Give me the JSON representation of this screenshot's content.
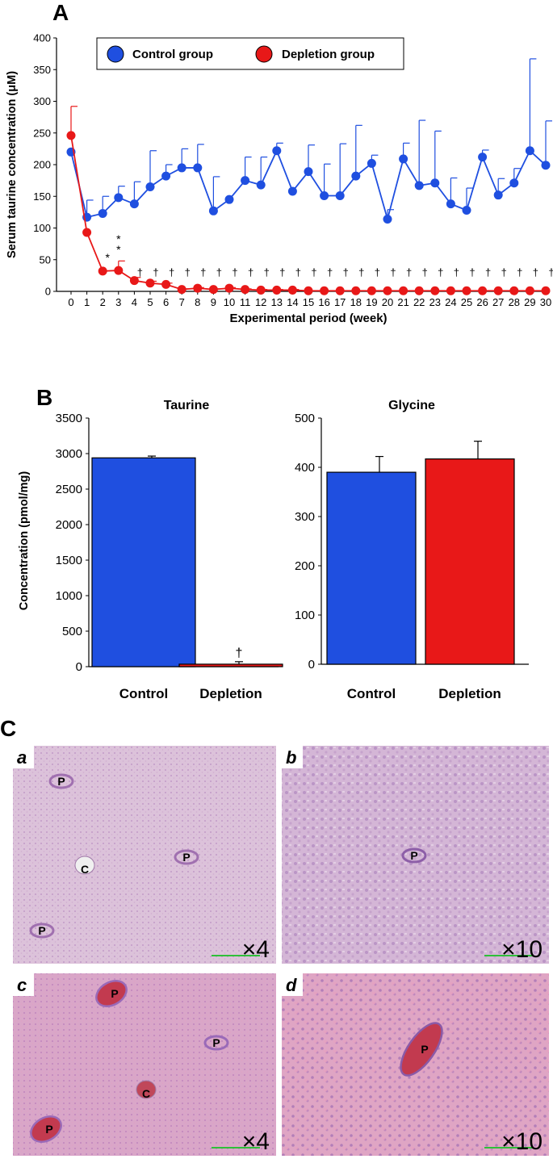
{
  "panel_letters": {
    "a": "A",
    "b": "B",
    "c": "C"
  },
  "chart_data": [
    {
      "type": "line",
      "panel": "A",
      "ylabel": "Serum taurine concentration (μM)",
      "xlabel": "Experimental period (week)",
      "ylim": [
        0,
        400
      ],
      "yticks": [
        0,
        50,
        100,
        150,
        200,
        250,
        300,
        350,
        400
      ],
      "x": [
        0,
        1,
        2,
        3,
        4,
        5,
        6,
        7,
        8,
        9,
        10,
        11,
        12,
        13,
        14,
        15,
        16,
        17,
        18,
        19,
        20,
        21,
        22,
        23,
        24,
        25,
        26,
        27,
        28,
        29,
        30
      ],
      "legend_position": "top",
      "series": [
        {
          "name": "Control group",
          "color": "#1f4fe0",
          "values": [
            220,
            117,
            123,
            148,
            138,
            165,
            182,
            195,
            195,
            127,
            145,
            175,
            168,
            222,
            158,
            189,
            151,
            151,
            182,
            202,
            114,
            209,
            167,
            171,
            138,
            128,
            212,
            152,
            171,
            222,
            199
          ],
          "error_plus": [
            0,
            27,
            27,
            18,
            35,
            57,
            18,
            30,
            37,
            54,
            0,
            37,
            44,
            12,
            0,
            42,
            50,
            82,
            80,
            13,
            15,
            25,
            103,
            82,
            41,
            35,
            11,
            26,
            23,
            145,
            70
          ]
        },
        {
          "name": "Depletion group",
          "color": "#e81818",
          "values": [
            246,
            93,
            32,
            33,
            17,
            13,
            11,
            3,
            5,
            3,
            5,
            3,
            2,
            2,
            2,
            1,
            1,
            1,
            1,
            1,
            1,
            1,
            1,
            1,
            1,
            1,
            1,
            1,
            1,
            1,
            1
          ],
          "error_plus": [
            46,
            0,
            0,
            15,
            5,
            3,
            2,
            1,
            1,
            1,
            1,
            1,
            1,
            1,
            1,
            0,
            0,
            0,
            0,
            0,
            0,
            0,
            0,
            0,
            0,
            0,
            0,
            0,
            0,
            0,
            0
          ]
        }
      ],
      "annotations": [
        {
          "x": 2,
          "text": "*"
        },
        {
          "x": 3,
          "text": "**"
        },
        {
          "x": 4,
          "text": "†"
        },
        {
          "x": 5,
          "text": "†"
        },
        {
          "x": 6,
          "text": "†"
        },
        {
          "x": 7,
          "text": "†"
        },
        {
          "x": 8,
          "text": "†"
        },
        {
          "x": 9,
          "text": "†"
        },
        {
          "x": 10,
          "text": "†"
        },
        {
          "x": 11,
          "text": "†"
        },
        {
          "x": 12,
          "text": "†"
        },
        {
          "x": 13,
          "text": "†"
        },
        {
          "x": 14,
          "text": "†"
        },
        {
          "x": 15,
          "text": "†"
        },
        {
          "x": 16,
          "text": "†"
        },
        {
          "x": 17,
          "text": "†"
        },
        {
          "x": 18,
          "text": "†"
        },
        {
          "x": 19,
          "text": "†"
        },
        {
          "x": 20,
          "text": "†"
        },
        {
          "x": 21,
          "text": "†"
        },
        {
          "x": 22,
          "text": "†"
        },
        {
          "x": 23,
          "text": "†"
        },
        {
          "x": 24,
          "text": "†"
        },
        {
          "x": 25,
          "text": "†"
        },
        {
          "x": 26,
          "text": "†"
        },
        {
          "x": 27,
          "text": "†"
        },
        {
          "x": 28,
          "text": "†"
        },
        {
          "x": 29,
          "text": "†"
        },
        {
          "x": 30,
          "text": "†"
        }
      ]
    },
    {
      "type": "bar",
      "panel": "B",
      "title": "Taurine",
      "ylabel": "Concentration (pmol/mg)",
      "categories": [
        "Control",
        "Depletion"
      ],
      "values": [
        2940,
        35
      ],
      "error_plus": [
        25,
        35
      ],
      "colors": [
        "#1f4fe0",
        "#e81818"
      ],
      "ylim": [
        0,
        3500
      ],
      "yticks": [
        0,
        500,
        1000,
        1500,
        2000,
        2500,
        3000,
        3500
      ],
      "annotations": [
        {
          "category": "Depletion",
          "text": "†"
        }
      ]
    },
    {
      "type": "bar",
      "panel": "B",
      "title": "Glycine",
      "ylabel": "",
      "categories": [
        "Control",
        "Depletion"
      ],
      "values": [
        390,
        417
      ],
      "error_plus": [
        32,
        36
      ],
      "colors": [
        "#1f4fe0",
        "#e81818"
      ],
      "ylim": [
        0,
        500
      ],
      "yticks": [
        0,
        100,
        200,
        300,
        400,
        500
      ]
    }
  ],
  "micrographs": [
    {
      "id": "a",
      "label": "a",
      "magnification": "×4",
      "region_labels": [
        "P",
        "C",
        "P",
        "P"
      ],
      "bg": "#dcc2da",
      "accent": "#a070b0"
    },
    {
      "id": "b",
      "label": "b",
      "magnification": "×10",
      "region_labels": [
        "P"
      ],
      "bg": "#d4b6d6",
      "accent": "#8d5ea8"
    },
    {
      "id": "c",
      "label": "c",
      "magnification": "×4",
      "region_labels": [
        "P",
        "P",
        "C",
        "P"
      ],
      "bg": "#d9a6c8",
      "accent": "#9a6ab8"
    },
    {
      "id": "d",
      "label": "d",
      "magnification": "×10",
      "region_labels": [
        "P"
      ],
      "bg": "#dfa5c4",
      "accent": "#8a5aa8"
    }
  ]
}
